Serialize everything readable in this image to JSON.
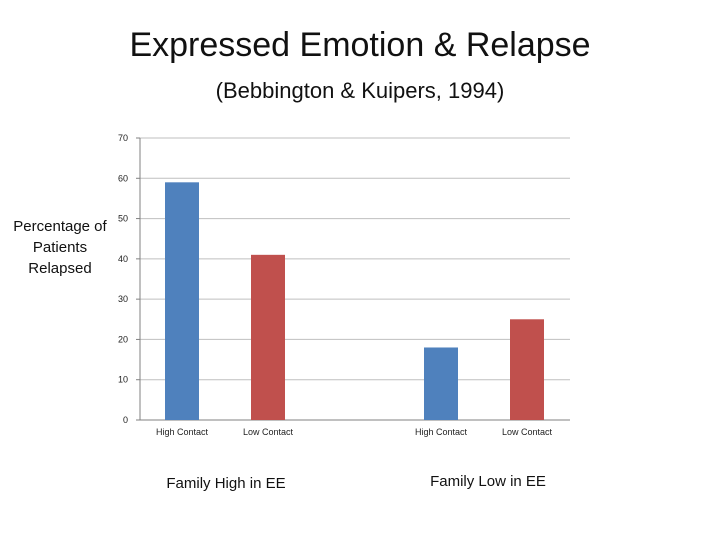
{
  "title": "Expressed Emotion & Relapse",
  "subtitle": "(Bebbington & Kuipers, 1994)",
  "colors": {
    "high_contact": "#4f81bd",
    "low_contact": "#c0504d",
    "grid": "#bfbfbf",
    "axis": "#808080"
  },
  "chart_data": {
    "type": "bar",
    "title": "Expressed Emotion & Relapse",
    "subtitle": "(Bebbington & Kuipers, 1994)",
    "ylabel": "Percentage of Patients Relapsed",
    "xlabel": "",
    "ylim": [
      0,
      70
    ],
    "yticks": [
      0,
      10,
      20,
      30,
      40,
      50,
      60,
      70
    ],
    "grid": true,
    "legend": "none",
    "groups": [
      "Family High in EE",
      "Family Low in EE"
    ],
    "bars": [
      {
        "group": "Family High in EE",
        "label": "High Contact",
        "value": 59,
        "color": "#4f81bd"
      },
      {
        "group": "Family High in EE",
        "label": "Low Contact",
        "value": 41,
        "color": "#c0504d"
      },
      {
        "group": "Family Low in EE",
        "label": "High Contact",
        "value": 18,
        "color": "#4f81bd"
      },
      {
        "group": "Family Low in EE",
        "label": "Low Contact",
        "value": 25,
        "color": "#c0504d"
      }
    ]
  }
}
